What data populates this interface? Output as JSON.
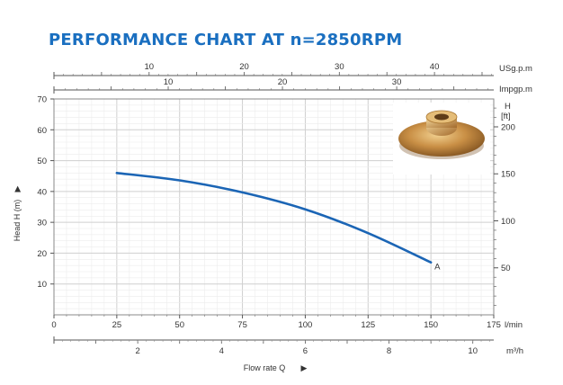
{
  "title": "PERFORMANCE CHART AT n=2850RPM",
  "chart_data": {
    "type": "line",
    "title": "PERFORMANCE CHART AT n=2850RPM",
    "xlabel": "Flow rate Q",
    "ylabel": "Head H (m)",
    "x_unit": "l/min",
    "xlim": [
      0,
      175
    ],
    "ylim": [
      0,
      70
    ],
    "x_ticks": [
      "0",
      "25",
      "50",
      "75",
      "100",
      "125",
      "150",
      "175"
    ],
    "y_ticks": [
      "10",
      "20",
      "30",
      "40",
      "50",
      "60",
      "70"
    ],
    "secondary_axes": {
      "usgpm": {
        "label": "USg.p.m",
        "ticks": [
          "10",
          "20",
          "30",
          "40"
        ]
      },
      "impgpm": {
        "label": "Impgp.m",
        "ticks": [
          "10",
          "20",
          "30"
        ]
      },
      "m3h": {
        "label": "m³/h",
        "ticks": [
          "2",
          "4",
          "6",
          "8",
          "10"
        ]
      },
      "head_ft": {
        "label_top": "H",
        "label_unit": "[ft]",
        "ticks": [
          "50",
          "100",
          "150",
          "200"
        ]
      }
    },
    "grid": true,
    "series": [
      {
        "name": "A",
        "color": "#1b65b5",
        "x": [
          25,
          50,
          75,
          100,
          125,
          150
        ],
        "y": [
          46,
          43.6,
          39.7,
          34.2,
          26.5,
          17
        ]
      }
    ],
    "annotations": [
      "A"
    ],
    "image": "impeller-photo"
  }
}
